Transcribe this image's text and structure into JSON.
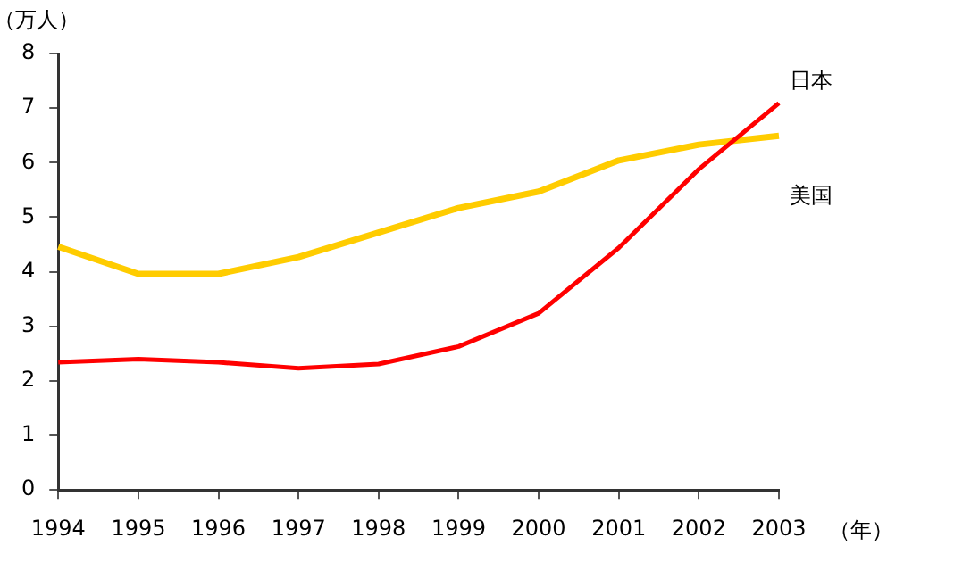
{
  "chart_data": {
    "type": "line",
    "ylabel": "（万人）",
    "xlabel": "（年）",
    "categories": [
      "1994",
      "1995",
      "1996",
      "1997",
      "1998",
      "1999",
      "2000",
      "2001",
      "2002",
      "2003"
    ],
    "series": [
      {
        "name": "日本",
        "color": "#ff0000",
        "values": [
          2.34,
          2.4,
          2.34,
          2.23,
          2.31,
          2.63,
          3.24,
          4.44,
          5.88,
          7.09
        ]
      },
      {
        "name": "美国",
        "color": "#ffcc00",
        "values": [
          4.46,
          3.96,
          3.96,
          4.27,
          4.72,
          5.17,
          5.47,
          6.04,
          6.33,
          6.49
        ]
      }
    ],
    "ylim": [
      0,
      8
    ],
    "yticks": [
      0,
      1,
      2,
      3,
      4,
      5,
      6,
      7,
      8
    ],
    "grid": false,
    "legend": false,
    "marker": "none",
    "line_style": "solid"
  }
}
